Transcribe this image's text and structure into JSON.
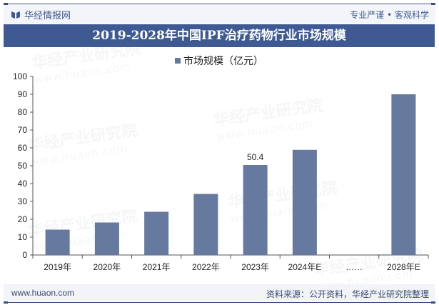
{
  "header": {
    "brand": "华经情报网",
    "slogan": "专业严谨 • 客观科学"
  },
  "title": "2019-2028年中国IPF治疗药物行业市场规模",
  "legend": {
    "label": "市场规模（亿元）",
    "color": "#66799e"
  },
  "footer": {
    "url": "www.huaon.com",
    "source": "资料来源：公开资料，华经产业研究院整理"
  },
  "watermarks": [
    {
      "text": "华经产业研究院",
      "sub": "www.huaon.com"
    }
  ],
  "colors": {
    "accent": "#3f5a93",
    "bar": "#66799e"
  },
  "chart_data": {
    "type": "bar",
    "title": "2019-2028年中国IPF治疗药物行业市场规模",
    "categories": [
      "2019年",
      "2020年",
      "2021年",
      "2022年",
      "2023年",
      "2024年E",
      "……",
      "2028年E"
    ],
    "series": [
      {
        "name": "市场规模（亿元）",
        "values": [
          14.2,
          18.2,
          24.2,
          34.2,
          50.4,
          58.9,
          null,
          90.0
        ]
      }
    ],
    "data_labels": [
      {
        "category": "2023年",
        "value": "50.4"
      }
    ],
    "xlabel": "",
    "ylabel": "",
    "ylim": [
      0,
      100
    ],
    "yticks": [
      0,
      10,
      20,
      30,
      40,
      50,
      60,
      70,
      80,
      90,
      100
    ],
    "grid": false,
    "legend_position": "top"
  }
}
